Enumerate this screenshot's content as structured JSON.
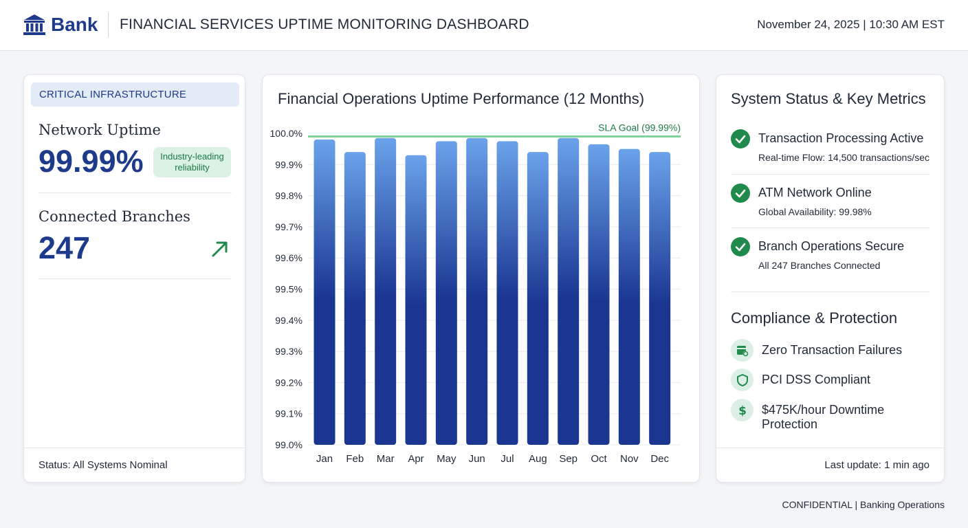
{
  "header": {
    "brand": "Bank",
    "title": "FINANCIAL SERVICES UPTIME MONITORING DASHBOARD",
    "datetime": "November 24, 2025 | 10:30 AM EST"
  },
  "left_panel": {
    "section_label": "CRITICAL INFRASTRUCTURE",
    "network_uptime": {
      "label": "Network Uptime",
      "value": "99.99%",
      "badge": "Industry-leading reliability"
    },
    "branches": {
      "label": "Connected Branches",
      "value": "247",
      "trend_icon": "trend-up-arrow-icon"
    },
    "status": "Status: All Systems Nominal"
  },
  "chart_data": {
    "type": "bar",
    "title": "Financial Operations Uptime Performance (12 Months)",
    "categories": [
      "Jan",
      "Feb",
      "Mar",
      "Apr",
      "May",
      "Jun",
      "Jul",
      "Aug",
      "Sep",
      "Oct",
      "Nov",
      "Dec"
    ],
    "values": [
      99.98,
      99.94,
      99.985,
      99.93,
      99.975,
      99.985,
      99.975,
      99.94,
      99.985,
      99.965,
      99.95,
      99.94
    ],
    "ylim": [
      99.0,
      100.0
    ],
    "yticks": [
      "99.0%",
      "99.1%",
      "99.2%",
      "99.3%",
      "99.4%",
      "99.5%",
      "99.6%",
      "99.7%",
      "99.8%",
      "99.9%",
      "100.0%"
    ],
    "reference_line": {
      "label": "SLA Goal (99.99%)",
      "value": 99.99,
      "color": "#7ed39a"
    },
    "bar_colors": {
      "top": "#6aa2ea",
      "bottom": "#1a3691"
    },
    "grid": true,
    "xlabel": "",
    "ylabel": ""
  },
  "right_panel": {
    "title": "System Status & Key Metrics",
    "statuses": [
      {
        "title": "Transaction Processing Active",
        "detail": "Real-time Flow: 14,500 transactions/sec",
        "icon": "check-circle-icon"
      },
      {
        "title": "ATM Network Online",
        "detail": "Global Availability: 99.98%",
        "icon": "check-circle-icon"
      },
      {
        "title": "Branch Operations Secure",
        "detail": "All 247 Branches Connected",
        "icon": "check-circle-icon"
      }
    ],
    "compliance_title": "Compliance & Protection",
    "compliance": [
      {
        "label": "Zero Transaction Failures",
        "icon": "transaction-shield-icon"
      },
      {
        "label": "PCI DSS Compliant",
        "icon": "shield-icon"
      },
      {
        "label": "$475K/hour Downtime Protection",
        "icon": "dollar-icon"
      }
    ],
    "last_update": "Last update: 1 min ago"
  },
  "footer": {
    "confidential": "CONFIDENTIAL | Banking Operations"
  },
  "colors": {
    "brand": "#1e3a8a",
    "success": "#1f8a4c",
    "badge_bg": "#dbf1e3"
  }
}
